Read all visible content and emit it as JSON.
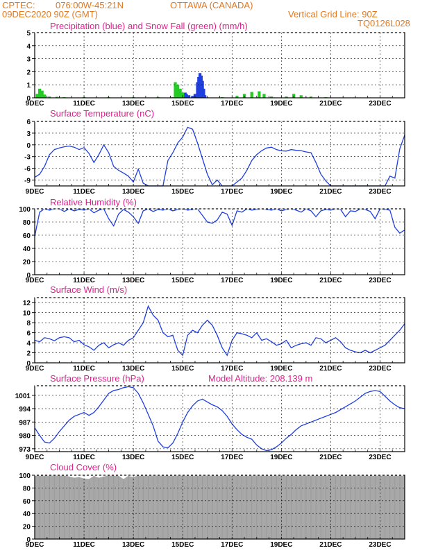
{
  "header": {
    "source": "CPTEC:",
    "coords": "076:00W-45:21N",
    "location": "OTTAWA (CANADA)",
    "init": "09DEC2020 90Z (GMT)",
    "grid": "Vertical Grid Line: 90Z",
    "code": "TQ0126L028"
  },
  "x_ticks": [
    "9DEC",
    "11DEC",
    "13DEC",
    "15DEC",
    "17DEC",
    "19DEC",
    "21DEC",
    "23DEC"
  ],
  "colors": {
    "line": "#1f3fe0",
    "snow": "#22cc22",
    "rain": "#1f3fe0",
    "cloud": "#a8a8a8",
    "grid": "#000000"
  },
  "chart_data": [
    {
      "id": "precip",
      "type": "bar",
      "title": "Precipitation (blue) and Snow Fall (green) (mm/h)",
      "ylim": [
        0,
        5
      ],
      "yticks": [
        0,
        1,
        2,
        3,
        4,
        5
      ],
      "x_range": [
        0,
        15
      ],
      "series": [
        {
          "name": "Precipitation",
          "color": "#1f3fe0",
          "points": [
            [
              5.9,
              0.1
            ],
            [
              6.0,
              0.35
            ],
            [
              6.1,
              0.4
            ],
            [
              6.15,
              0.3
            ],
            [
              6.25,
              0.2
            ],
            [
              6.4,
              0.15
            ],
            [
              6.5,
              0.3
            ],
            [
              6.6,
              1.2
            ],
            [
              6.65,
              1.6
            ],
            [
              6.7,
              1.9
            ],
            [
              6.75,
              1.7
            ],
            [
              6.8,
              1.3
            ],
            [
              6.85,
              0.7
            ],
            [
              6.9,
              0.2
            ]
          ]
        },
        {
          "name": "Snow Fall",
          "color": "#22cc22",
          "points": [
            [
              0.1,
              0.3
            ],
            [
              0.2,
              0.7
            ],
            [
              0.3,
              0.55
            ],
            [
              0.4,
              0.25
            ],
            [
              0.6,
              0.1
            ],
            [
              0.9,
              0.08
            ],
            [
              1.2,
              0.05
            ],
            [
              2.0,
              0.05
            ],
            [
              3.0,
              0.05
            ],
            [
              4.0,
              0.05
            ],
            [
              5.0,
              0.05
            ],
            [
              5.6,
              0.05
            ],
            [
              5.7,
              1.2
            ],
            [
              5.8,
              1.0
            ],
            [
              5.9,
              0.7
            ],
            [
              6.0,
              0.4
            ],
            [
              7.6,
              0.05
            ],
            [
              8.2,
              0.15
            ],
            [
              8.5,
              0.3
            ],
            [
              8.8,
              0.45
            ],
            [
              9.1,
              0.5
            ],
            [
              9.3,
              0.3
            ],
            [
              9.6,
              0.1
            ],
            [
              10.2,
              0.1
            ],
            [
              10.5,
              0.3
            ],
            [
              10.8,
              0.2
            ],
            [
              11.2,
              0.1
            ],
            [
              11.8,
              0.05
            ],
            [
              13.0,
              0.03
            ]
          ]
        }
      ]
    },
    {
      "id": "temp",
      "type": "line",
      "title": "Surface Temperature (nC)",
      "ylim": [
        -10.5,
        6
      ],
      "yticks": [
        -9,
        -6,
        -3,
        0,
        3,
        6
      ],
      "x_range": [
        0,
        15
      ],
      "x": [
        0,
        0.2,
        0.4,
        0.6,
        0.8,
        1.0,
        1.2,
        1.4,
        1.6,
        1.8,
        2.0,
        2.2,
        2.4,
        2.6,
        2.8,
        3.0,
        3.2,
        3.4,
        3.6,
        3.8,
        4.0,
        4.2,
        4.4,
        4.6,
        4.8,
        5.0,
        5.2,
        5.4,
        5.6,
        5.8,
        6.0,
        6.2,
        6.4,
        6.6,
        6.8,
        7.0,
        7.2,
        7.4,
        7.6,
        7.8,
        8.0,
        8.2,
        8.4,
        8.6,
        8.8,
        9.0,
        9.2,
        9.4,
        9.6,
        9.8,
        10.0,
        10.2,
        10.4,
        10.6,
        10.8,
        11.0,
        11.2,
        11.4,
        11.6,
        11.8,
        12.0,
        12.2,
        12.4,
        12.6,
        12.8,
        13.0,
        13.2,
        13.4,
        13.6,
        13.8,
        14.0,
        14.2,
        14.4,
        14.6,
        14.8,
        15.0
      ],
      "values": [
        -8.3,
        -7.5,
        -5.5,
        -2.5,
        -1.2,
        -0.8,
        -0.5,
        -0.3,
        -0.6,
        -1.2,
        -0.7,
        -2.2,
        -4.5,
        -2.5,
        0.0,
        -2.0,
        -5.5,
        -6.5,
        -7.2,
        -8.0,
        -9.5,
        -6.2,
        -9.8,
        -10.5,
        -10.5,
        -10.5,
        -10.5,
        -4.0,
        -2.0,
        0.5,
        2.0,
        4.5,
        4.0,
        0.5,
        -3.5,
        -7.5,
        -10.2,
        -9.0,
        -10.5,
        -10.5,
        -10.5,
        -9.5,
        -8.5,
        -6.5,
        -4.0,
        -2.5,
        -1.5,
        -0.8,
        -0.6,
        -1.2,
        -1.5,
        -1.6,
        -1.2,
        -1.4,
        -1.5,
        -1.8,
        -2.0,
        -4.5,
        -7.5,
        -9.2,
        -10.5,
        -10.5,
        -10.5,
        -10.5,
        -10.5,
        -10.5,
        -10.5,
        -10.5,
        -10.5,
        -10.5,
        -10.5,
        -10.5,
        -8.0,
        -8.5,
        -1.0,
        2.5
      ]
    },
    {
      "id": "rh",
      "type": "line",
      "title": "Relative Humidity (%)",
      "ylim": [
        0,
        100
      ],
      "yticks": [
        0,
        20,
        40,
        60,
        80,
        100
      ],
      "x_range": [
        0,
        15
      ],
      "x": [
        0,
        0.2,
        0.4,
        0.6,
        0.8,
        1.0,
        1.2,
        1.4,
        1.6,
        1.8,
        2.0,
        2.2,
        2.4,
        2.6,
        2.8,
        3.0,
        3.2,
        3.4,
        3.6,
        3.8,
        4.0,
        4.2,
        4.4,
        4.6,
        4.8,
        5.0,
        5.2,
        5.4,
        5.6,
        5.8,
        6.0,
        6.2,
        6.4,
        6.6,
        6.8,
        7.0,
        7.2,
        7.4,
        7.6,
        7.8,
        8.0,
        8.2,
        8.4,
        8.6,
        8.8,
        9.0,
        9.2,
        9.4,
        9.6,
        9.8,
        10.0,
        10.2,
        10.4,
        10.6,
        10.8,
        11.0,
        11.2,
        11.4,
        11.6,
        11.8,
        12.0,
        12.2,
        12.4,
        12.6,
        12.8,
        13.0,
        13.2,
        13.4,
        13.6,
        13.8,
        14.0,
        14.2,
        14.4,
        14.6,
        14.8,
        15.0
      ],
      "values": [
        58,
        95,
        100,
        98,
        100,
        100,
        96,
        100,
        97,
        99,
        98,
        100,
        94,
        98,
        100,
        85,
        74,
        92,
        99,
        95,
        88,
        78,
        97,
        100,
        96,
        99,
        98,
        100,
        97,
        99,
        100,
        98,
        99,
        100,
        90,
        80,
        78,
        83,
        95,
        92,
        75,
        97,
        95,
        100,
        98,
        99,
        100,
        99,
        98,
        100,
        97,
        99,
        100,
        98,
        95,
        100,
        97,
        88,
        97,
        99,
        98,
        100,
        99,
        88,
        97,
        96,
        100,
        99,
        96,
        85,
        100,
        99,
        98,
        72,
        63,
        68
      ]
    },
    {
      "id": "wind",
      "type": "line",
      "title": "Surface Wind (m/s)",
      "ylim": [
        0,
        13
      ],
      "yticks": [
        0,
        2,
        4,
        6,
        8,
        10,
        12
      ],
      "x_range": [
        0,
        15
      ],
      "x": [
        0,
        0.2,
        0.4,
        0.6,
        0.8,
        1.0,
        1.2,
        1.4,
        1.6,
        1.8,
        2.0,
        2.2,
        2.4,
        2.6,
        2.8,
        3.0,
        3.2,
        3.4,
        3.6,
        3.8,
        4.0,
        4.2,
        4.4,
        4.6,
        4.8,
        5.0,
        5.2,
        5.4,
        5.6,
        5.8,
        6.0,
        6.2,
        6.4,
        6.6,
        6.8,
        7.0,
        7.2,
        7.4,
        7.6,
        7.8,
        8.0,
        8.2,
        8.4,
        8.6,
        8.8,
        9.0,
        9.2,
        9.4,
        9.6,
        9.8,
        10.0,
        10.2,
        10.4,
        10.6,
        10.8,
        11.0,
        11.2,
        11.4,
        11.6,
        11.8,
        12.0,
        12.2,
        12.4,
        12.6,
        12.8,
        13.0,
        13.2,
        13.4,
        13.6,
        13.8,
        14.0,
        14.2,
        14.4,
        14.6,
        14.8,
        15.0
      ],
      "values": [
        4.5,
        4.2,
        5.0,
        4.8,
        4.4,
        5.0,
        5.2,
        5.0,
        4.2,
        4.5,
        3.6,
        3.2,
        2.5,
        3.5,
        4.0,
        3.0,
        3.6,
        4.0,
        3.5,
        4.5,
        5.0,
        6.5,
        8.0,
        11.3,
        9.5,
        8.5,
        6.0,
        5.2,
        5.5,
        2.5,
        1.5,
        5.5,
        6.5,
        6.0,
        7.5,
        8.5,
        7.5,
        5.5,
        3.0,
        1.5,
        4.5,
        6.0,
        5.8,
        5.5,
        5.0,
        6.0,
        4.5,
        4.8,
        4.2,
        3.5,
        3.8,
        4.5,
        3.0,
        3.5,
        3.8,
        4.0,
        3.5,
        5.0,
        4.8,
        4.0,
        4.5,
        5.0,
        4.2,
        3.0,
        2.5,
        2.2,
        2.0,
        2.5,
        2.0,
        2.5,
        3.0,
        3.5,
        4.5,
        5.5,
        6.5,
        7.8
      ]
    },
    {
      "id": "press",
      "type": "line",
      "title": "Surface Pressure (hPa)",
      "subtitle": "Model Altitude: 208.139 m",
      "ylim": [
        971.5,
        1006
      ],
      "yticks": [
        973,
        980,
        987,
        994,
        1001
      ],
      "x_range": [
        0,
        15
      ],
      "x": [
        0,
        0.2,
        0.4,
        0.6,
        0.8,
        1.0,
        1.2,
        1.4,
        1.6,
        1.8,
        2.0,
        2.2,
        2.4,
        2.6,
        2.8,
        3.0,
        3.2,
        3.4,
        3.6,
        3.8,
        4.0,
        4.2,
        4.4,
        4.6,
        4.8,
        5.0,
        5.2,
        5.4,
        5.6,
        5.8,
        6.0,
        6.2,
        6.4,
        6.6,
        6.8,
        7.0,
        7.2,
        7.4,
        7.6,
        7.8,
        8.0,
        8.2,
        8.4,
        8.6,
        8.8,
        9.0,
        9.2,
        9.4,
        9.6,
        9.8,
        10.0,
        10.2,
        10.4,
        10.6,
        10.8,
        11.0,
        11.2,
        11.4,
        11.6,
        11.8,
        12.0,
        12.2,
        12.4,
        12.6,
        12.8,
        13.0,
        13.2,
        13.4,
        13.6,
        13.8,
        14.0,
        14.2,
        14.4,
        14.6,
        14.8,
        15.0
      ],
      "values": [
        984,
        980,
        976.5,
        976,
        978.5,
        982,
        985,
        988,
        990,
        991,
        992,
        990.5,
        992,
        995,
        998.5,
        1002,
        1003.5,
        1004,
        1005,
        1005.5,
        1005,
        1002,
        997,
        991,
        985,
        977,
        974,
        973.5,
        976,
        981,
        987,
        992,
        995.5,
        998,
        999,
        997.5,
        996,
        995,
        993,
        990,
        986,
        983,
        980.5,
        979,
        978,
        975,
        973,
        972,
        972.5,
        974,
        976,
        978.5,
        980.5,
        983,
        985,
        986,
        987,
        988,
        989,
        990,
        991,
        992,
        993.5,
        995,
        996.5,
        998,
        1000,
        1002,
        1003,
        1003.5,
        1003,
        1000.5,
        998,
        996,
        994.5,
        994
      ]
    },
    {
      "id": "cloud",
      "type": "area",
      "title": "Cloud Cover (%)",
      "ylim": [
        0,
        100
      ],
      "yticks": [
        0,
        20,
        40,
        60,
        80,
        100
      ],
      "x_range": [
        0,
        15
      ],
      "x": [
        0,
        0.2,
        0.4,
        0.6,
        0.8,
        1.0,
        1.2,
        1.4,
        1.6,
        1.8,
        2.0,
        2.2,
        2.4,
        2.6,
        2.8,
        3.0,
        3.2,
        3.4,
        3.6,
        3.8,
        4.0,
        4.2,
        4.4,
        4.6,
        4.8,
        5.0,
        5.2,
        5.4,
        5.6,
        5.8,
        6.0,
        6.2,
        6.4,
        6.6,
        6.8,
        7.0,
        7.2,
        7.4,
        7.6,
        7.8,
        8.0,
        8.2,
        8.4,
        8.6,
        8.8,
        9.0,
        9.2,
        9.4,
        9.6,
        9.8,
        10.0,
        10.2,
        10.4,
        10.6,
        10.8,
        11.0,
        11.2,
        11.4,
        11.6,
        11.8,
        12.0,
        12.2,
        12.4,
        12.6,
        12.8,
        13.0,
        13.2,
        13.4,
        13.6,
        13.8,
        14.0,
        14.2,
        14.4,
        14.6,
        14.8,
        15.0
      ],
      "values": [
        100,
        100,
        100,
        100,
        100,
        100,
        100,
        98,
        96,
        97,
        95,
        94,
        99,
        96,
        98,
        100,
        100,
        99,
        94,
        99,
        97,
        100,
        100,
        100,
        100,
        100,
        100,
        100,
        100,
        100,
        100,
        100,
        100,
        100,
        100,
        100,
        100,
        100,
        100,
        100,
        100,
        100,
        100,
        100,
        100,
        100,
        100,
        100,
        100,
        100,
        100,
        100,
        100,
        100,
        100,
        100,
        100,
        100,
        100,
        100,
        100,
        100,
        100,
        100,
        100,
        100,
        100,
        100,
        100,
        100,
        100,
        100,
        100,
        100,
        100,
        100
      ]
    }
  ]
}
